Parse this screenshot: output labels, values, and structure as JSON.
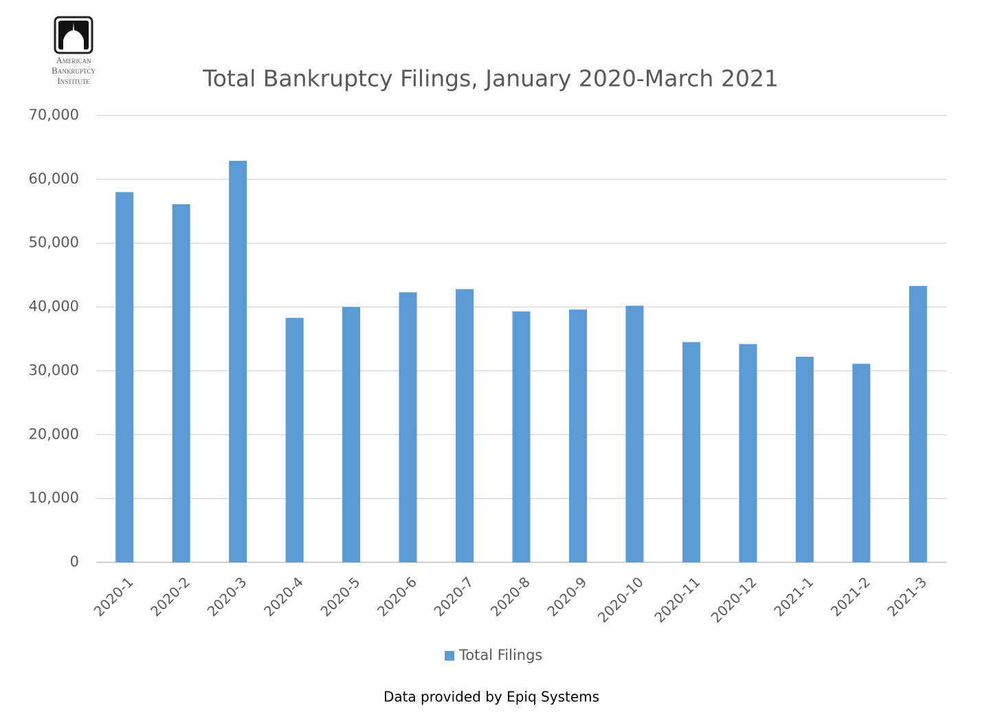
{
  "chart_data": {
    "type": "bar",
    "title": "Total Bankruptcy Filings, January 2020-March 2021",
    "logo_text": [
      "American",
      "Bankruptcy",
      "Institute"
    ],
    "source": "Data provided by Epiq Systems",
    "categories": [
      "2020-1",
      "2020-2",
      "2020-3",
      "2020-4",
      "2020-5",
      "2020-6",
      "2020-7",
      "2020-8",
      "2020-9",
      "2020-10",
      "2020-11",
      "2020-12",
      "2021-1",
      "2021-2",
      "2021-3"
    ],
    "series": [
      {
        "name": "Total Filings",
        "color": "#5b9bd5",
        "values": [
          58000,
          56100,
          62900,
          38300,
          40000,
          42300,
          42800,
          39300,
          39600,
          40200,
          34500,
          34200,
          32200,
          31100,
          43300
        ]
      }
    ],
    "ylim": [
      0,
      70000
    ],
    "yticks": [
      0,
      {
        "value": 10000,
        "label": "10,000"
      },
      {
        "value": 20000,
        "label": "20,000"
      },
      {
        "value": 30000,
        "label": "30,000"
      },
      {
        "value": 40000,
        "label": "40,000"
      },
      {
        "value": 50000,
        "label": "50,000"
      },
      {
        "value": 60000,
        "label": "60,000"
      },
      {
        "value": 70000,
        "label": "70,000"
      }
    ],
    "grid": true,
    "legend": "bottom"
  }
}
